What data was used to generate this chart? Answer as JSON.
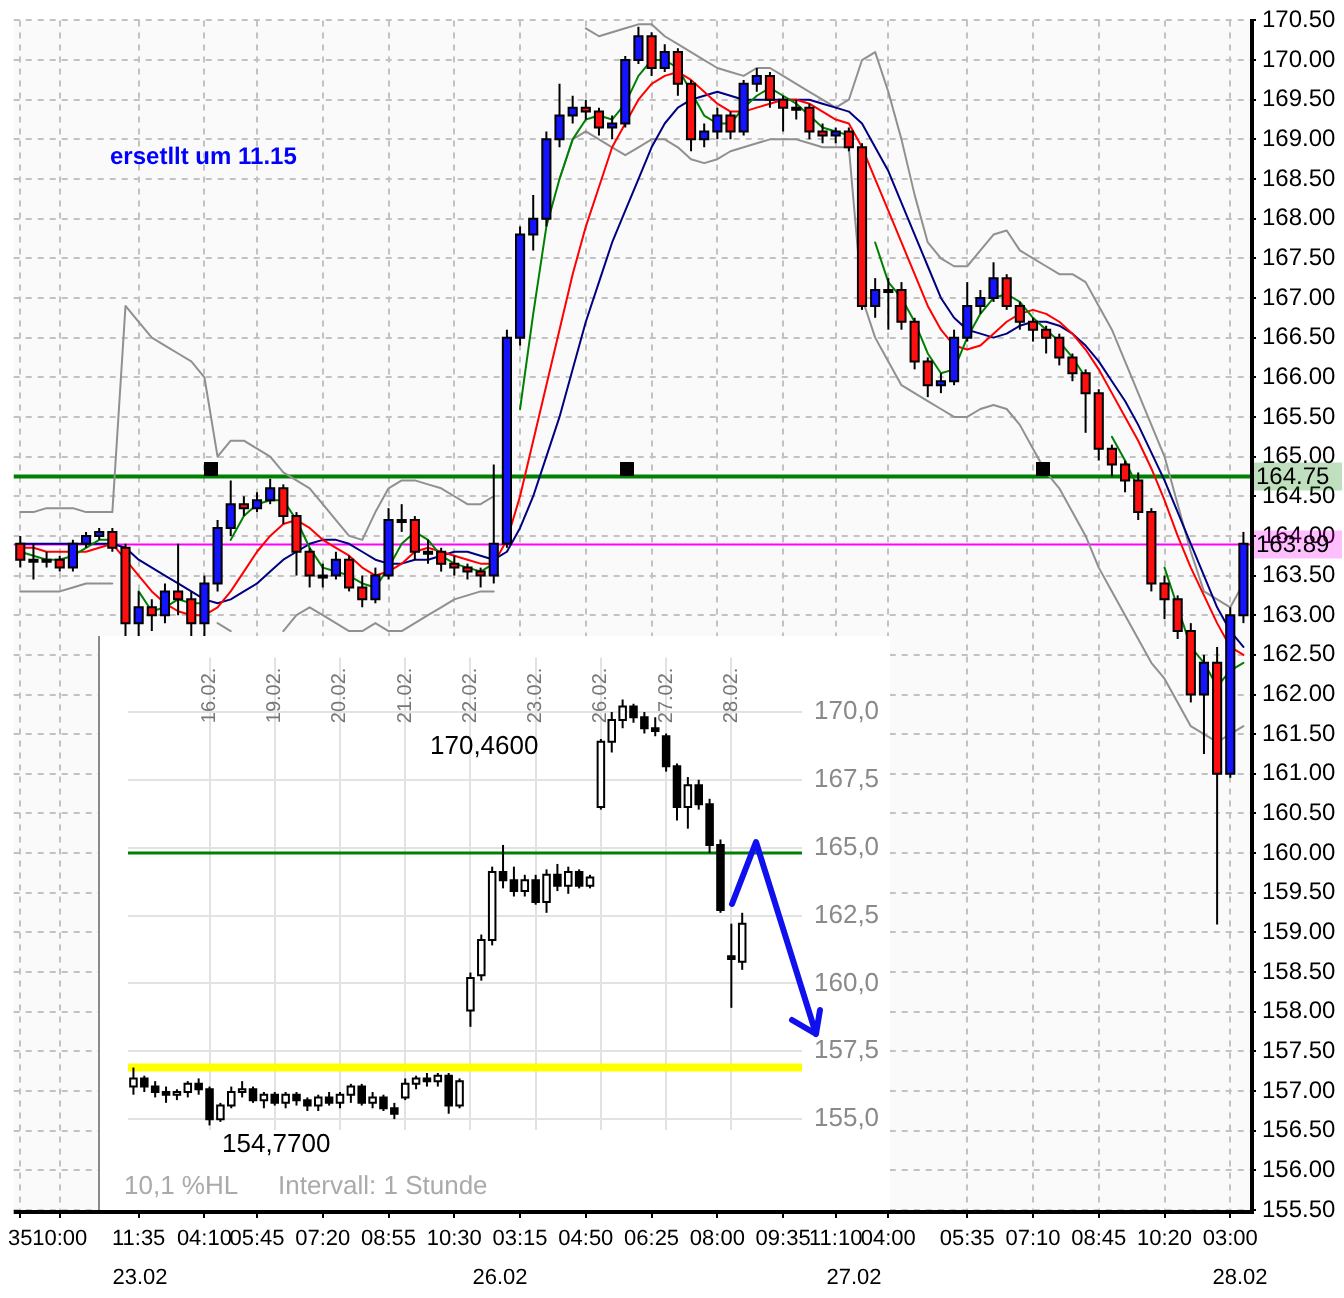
{
  "chart_data": [
    {
      "type": "candlestick",
      "categories": [
        "35",
        null,
        null,
        "10:00",
        null,
        null,
        null,
        null,
        null,
        "11:35",
        null,
        null,
        null,
        null,
        "04:10",
        null,
        null,
        null,
        "05:45",
        null,
        null,
        null,
        null,
        "07:20",
        null,
        null,
        null,
        null,
        "08:55",
        null,
        null,
        null,
        null,
        "10:30",
        null,
        null,
        null,
        null,
        "03:15",
        null,
        null,
        null,
        null,
        "04:50",
        null,
        null,
        null,
        null,
        "06:25",
        null,
        null,
        null,
        null,
        "08:00",
        null,
        null,
        null,
        null,
        "09:35",
        null,
        null,
        null,
        "11:10",
        null,
        null,
        null,
        "04:00",
        null,
        null,
        null,
        null,
        null,
        "05:35",
        null,
        null,
        null,
        null,
        "07:10",
        null,
        null,
        null,
        null,
        "08:45",
        null,
        null,
        null,
        null,
        "10:20",
        null,
        null,
        null,
        null,
        "03:00",
        null
      ],
      "ohlc": [
        [
          163.9,
          164.0,
          163.6,
          163.7
        ],
        [
          163.7,
          163.9,
          163.45,
          163.7
        ],
        [
          163.7,
          163.8,
          163.6,
          163.7
        ],
        [
          163.7,
          163.75,
          163.55,
          163.6
        ],
        [
          163.6,
          163.95,
          163.55,
          163.9
        ],
        [
          163.9,
          164.05,
          163.85,
          164.0
        ],
        [
          164.0,
          164.1,
          163.95,
          164.05
        ],
        [
          164.05,
          164.1,
          163.8,
          163.85
        ],
        [
          163.85,
          163.9,
          162.7,
          162.9
        ],
        [
          162.9,
          163.3,
          162.7,
          163.1
        ],
        [
          163.1,
          163.2,
          162.8,
          163.0
        ],
        [
          163.0,
          163.4,
          162.9,
          163.3
        ],
        [
          163.3,
          163.9,
          163.0,
          163.2
        ],
        [
          163.2,
          163.3,
          162.7,
          162.9
        ],
        [
          162.9,
          163.5,
          162.7,
          163.4
        ],
        [
          163.4,
          164.2,
          163.3,
          164.1
        ],
        [
          164.1,
          164.7,
          164.0,
          164.4
        ],
        [
          164.4,
          164.5,
          164.25,
          164.35
        ],
        [
          164.35,
          164.55,
          164.3,
          164.45
        ],
        [
          164.45,
          164.72,
          164.4,
          164.6
        ],
        [
          164.6,
          164.65,
          164.15,
          164.25
        ],
        [
          164.25,
          164.3,
          163.5,
          163.8
        ],
        [
          163.8,
          163.85,
          163.35,
          163.5
        ],
        [
          163.5,
          163.65,
          163.35,
          163.5
        ],
        [
          163.5,
          163.8,
          163.45,
          163.7
        ],
        [
          163.7,
          163.75,
          163.3,
          163.35
        ],
        [
          163.35,
          163.5,
          163.1,
          163.2
        ],
        [
          163.2,
          163.6,
          163.15,
          163.5
        ],
        [
          163.5,
          164.35,
          163.45,
          164.2
        ],
        [
          164.2,
          164.4,
          164.05,
          164.2
        ],
        [
          164.2,
          164.25,
          163.7,
          163.8
        ],
        [
          163.8,
          163.95,
          163.65,
          163.8
        ],
        [
          163.8,
          163.85,
          163.55,
          163.65
        ],
        [
          163.65,
          163.75,
          163.5,
          163.6
        ],
        [
          163.6,
          163.65,
          163.45,
          163.55
        ],
        [
          163.55,
          163.6,
          163.35,
          163.5
        ],
        [
          163.5,
          164.9,
          163.4,
          163.9
        ],
        [
          163.9,
          166.6,
          163.85,
          166.5
        ],
        [
          166.5,
          167.9,
          166.4,
          167.8
        ],
        [
          167.8,
          168.3,
          167.6,
          168.0
        ],
        [
          168.0,
          169.1,
          167.9,
          169.0
        ],
        [
          169.0,
          169.7,
          168.9,
          169.3
        ],
        [
          169.3,
          169.55,
          169.2,
          169.4
        ],
        [
          169.4,
          169.5,
          169.25,
          169.35
        ],
        [
          169.35,
          169.4,
          169.05,
          169.15
        ],
        [
          169.15,
          169.3,
          169.0,
          169.2
        ],
        [
          169.2,
          170.05,
          169.15,
          170.0
        ],
        [
          170.0,
          170.42,
          169.95,
          170.3
        ],
        [
          170.3,
          170.35,
          169.8,
          169.9
        ],
        [
          169.9,
          170.2,
          169.85,
          170.1
        ],
        [
          170.1,
          170.15,
          169.55,
          169.7
        ],
        [
          169.7,
          169.75,
          168.85,
          169.0
        ],
        [
          169.0,
          169.2,
          168.9,
          169.1
        ],
        [
          169.1,
          169.4,
          169.0,
          169.3
        ],
        [
          169.3,
          169.35,
          169.0,
          169.1
        ],
        [
          169.1,
          169.75,
          169.05,
          169.7
        ],
        [
          169.7,
          169.9,
          169.6,
          169.8
        ],
        [
          169.8,
          169.85,
          169.4,
          169.5
        ],
        [
          169.5,
          169.55,
          169.1,
          169.4
        ],
        [
          169.4,
          169.5,
          169.25,
          169.4
        ],
        [
          169.4,
          169.45,
          169.0,
          169.1
        ],
        [
          169.1,
          169.2,
          168.95,
          169.05
        ],
        [
          169.05,
          169.15,
          168.95,
          169.1
        ],
        [
          169.1,
          169.15,
          168.85,
          168.9
        ],
        [
          168.9,
          168.95,
          166.85,
          166.9
        ],
        [
          166.9,
          167.25,
          166.75,
          167.1
        ],
        [
          167.1,
          167.25,
          166.6,
          167.1
        ],
        [
          167.1,
          167.2,
          166.6,
          166.7
        ],
        [
          166.7,
          166.75,
          166.1,
          166.2
        ],
        [
          166.2,
          166.25,
          165.75,
          165.9
        ],
        [
          165.9,
          166.05,
          165.8,
          165.95
        ],
        [
          165.95,
          166.6,
          165.9,
          166.5
        ],
        [
          166.5,
          167.2,
          166.45,
          166.9
        ],
        [
          166.9,
          167.1,
          166.8,
          167.0
        ],
        [
          167.0,
          167.45,
          166.95,
          167.25
        ],
        [
          167.25,
          167.3,
          166.85,
          166.9
        ],
        [
          166.9,
          166.95,
          166.6,
          166.7
        ],
        [
          166.7,
          166.75,
          166.45,
          166.6
        ],
        [
          166.6,
          166.65,
          166.3,
          166.5
        ],
        [
          166.5,
          166.55,
          166.15,
          166.25
        ],
        [
          166.25,
          166.3,
          165.95,
          166.05
        ],
        [
          166.05,
          166.1,
          165.3,
          165.8
        ],
        [
          165.8,
          165.85,
          164.95,
          165.1
        ],
        [
          165.1,
          165.15,
          164.75,
          164.9
        ],
        [
          164.9,
          164.95,
          164.55,
          164.7
        ],
        [
          164.7,
          164.8,
          164.2,
          164.3
        ],
        [
          164.3,
          164.35,
          163.3,
          163.4
        ],
        [
          163.4,
          163.5,
          162.95,
          163.2
        ],
        [
          163.2,
          163.25,
          162.7,
          162.8
        ],
        [
          162.8,
          162.9,
          161.9,
          162.0
        ],
        [
          162.0,
          162.5,
          161.25,
          162.4
        ],
        [
          162.4,
          162.6,
          159.1,
          161.0
        ],
        [
          161.0,
          163.1,
          160.95,
          163.0
        ],
        [
          163.0,
          164.05,
          162.9,
          163.9
        ]
      ],
      "series": [
        {
          "type": "line",
          "color": "#008000",
          "values": [
            163.8,
            163.75,
            163.7,
            163.7,
            163.75,
            163.85,
            163.95,
            163.95,
            null,
            163.3,
            163.05,
            163.1,
            163.2,
            163.15,
            163.15,
            null,
            163.95,
            164.25,
            164.4,
            164.45,
            164.45,
            164.2,
            163.85,
            163.6,
            163.55,
            163.5,
            163.4,
            163.35,
            163.6,
            163.9,
            164.05,
            163.95,
            163.75,
            163.65,
            163.6,
            163.55,
            163.65,
            null,
            165.6,
            166.8,
            167.9,
            168.5,
            169.0,
            169.25,
            169.3,
            169.25,
            169.45,
            169.8,
            170.0,
            170.0,
            169.9,
            169.6,
            169.3,
            169.2,
            169.2,
            169.4,
            169.55,
            169.65,
            169.55,
            169.45,
            169.3,
            169.15,
            169.1,
            169.05,
            null,
            167.7,
            167.2,
            167.0,
            166.7,
            166.3,
            166.05,
            166.1,
            166.5,
            166.8,
            167.0,
            167.05,
            166.95,
            166.75,
            166.6,
            166.45,
            166.25,
            166.0,
            null,
            165.25,
            164.95,
            164.6,
            null,
            163.6,
            163.1,
            162.6,
            162.4,
            162.1,
            162.3,
            162.4
          ]
        },
        {
          "type": "line",
          "color": "#ff0000",
          "values": [
            163.85,
            163.85,
            163.8,
            163.8,
            163.8,
            163.8,
            163.85,
            163.9,
            163.7,
            163.5,
            163.3,
            163.15,
            163.05,
            163.0,
            163.0,
            163.1,
            163.3,
            163.55,
            163.8,
            164.0,
            164.15,
            164.2,
            164.1,
            163.95,
            163.85,
            163.75,
            163.6,
            163.5,
            163.55,
            163.65,
            163.8,
            163.85,
            163.8,
            163.75,
            163.7,
            163.65,
            163.65,
            163.95,
            164.5,
            165.2,
            165.9,
            166.6,
            167.3,
            167.9,
            168.4,
            168.9,
            169.2,
            169.5,
            169.7,
            169.8,
            169.85,
            169.75,
            169.6,
            169.45,
            169.35,
            169.35,
            169.4,
            169.45,
            169.5,
            169.5,
            169.45,
            169.35,
            169.25,
            169.2,
            168.9,
            168.5,
            168.1,
            167.7,
            167.3,
            166.9,
            166.6,
            166.4,
            166.35,
            166.4,
            166.55,
            166.7,
            166.8,
            166.85,
            166.8,
            166.7,
            166.55,
            166.35,
            166.1,
            165.8,
            165.5,
            165.2,
            164.85,
            164.45,
            164.0,
            163.6,
            163.25,
            162.9,
            162.6,
            162.5
          ]
        },
        {
          "type": "line",
          "color": "#000080",
          "values": [
            163.9,
            163.9,
            163.9,
            163.9,
            163.9,
            163.9,
            163.9,
            163.9,
            163.85,
            163.7,
            163.6,
            163.5,
            163.4,
            163.3,
            163.2,
            163.15,
            163.2,
            163.3,
            163.4,
            163.55,
            163.7,
            163.8,
            163.9,
            163.95,
            163.95,
            163.9,
            163.8,
            163.7,
            163.65,
            163.65,
            163.7,
            163.7,
            163.75,
            163.8,
            163.8,
            163.75,
            163.7,
            163.8,
            164.1,
            164.5,
            165.0,
            165.5,
            166.1,
            166.7,
            167.2,
            167.7,
            168.1,
            168.5,
            168.9,
            169.2,
            169.4,
            169.5,
            169.55,
            169.6,
            169.55,
            169.5,
            169.5,
            169.5,
            169.5,
            169.5,
            169.5,
            169.45,
            169.4,
            169.35,
            169.2,
            168.9,
            168.6,
            168.2,
            167.8,
            167.4,
            167.0,
            166.75,
            166.6,
            166.55,
            166.5,
            166.55,
            166.65,
            166.7,
            166.7,
            166.65,
            166.55,
            166.4,
            166.2,
            165.95,
            165.7,
            165.4,
            165.05,
            164.7,
            164.3,
            163.9,
            163.5,
            163.1,
            162.8,
            162.6
          ]
        },
        {
          "type": "line",
          "color": "#909090",
          "values": [
            164.3,
            164.3,
            164.35,
            164.35,
            164.35,
            164.3,
            164.3,
            164.3,
            166.9,
            166.7,
            166.5,
            166.4,
            166.3,
            166.2,
            166.0,
            165.0,
            165.2,
            165.2,
            165.1,
            165.0,
            164.8,
            164.7,
            164.6,
            164.4,
            164.2,
            164.0,
            163.95,
            164.3,
            164.6,
            164.7,
            164.7,
            164.65,
            164.6,
            164.5,
            164.4,
            164.4,
            164.5,
            null,
            null,
            null,
            null,
            null,
            null,
            170.4,
            170.3,
            170.35,
            170.4,
            170.45,
            170.45,
            170.3,
            170.2,
            170.1,
            170.0,
            169.9,
            169.85,
            169.8,
            169.9,
            169.9,
            169.8,
            169.7,
            169.6,
            169.5,
            169.4,
            169.5,
            170.0,
            170.1,
            169.6,
            169.0,
            168.3,
            167.7,
            167.5,
            167.4,
            167.4,
            167.6,
            167.8,
            167.85,
            167.6,
            167.5,
            167.4,
            167.3,
            167.3,
            167.2,
            166.9,
            166.6,
            166.2,
            165.8,
            165.4,
            165.0,
            164.4,
            163.8,
            163.3,
            163.2,
            163.1,
            163.4
          ]
        },
        {
          "type": "line",
          "color": "#909090",
          "values": [
            163.3,
            163.3,
            163.3,
            163.3,
            163.35,
            163.4,
            163.4,
            163.4,
            null,
            null,
            null,
            null,
            null,
            null,
            null,
            162.9,
            162.8,
            null,
            null,
            null,
            162.8,
            163.0,
            163.1,
            163.0,
            162.9,
            162.8,
            162.8,
            162.9,
            162.8,
            162.8,
            162.9,
            163.0,
            163.1,
            163.2,
            163.25,
            163.3,
            163.3,
            null,
            null,
            null,
            null,
            168.5,
            169.0,
            169.1,
            169.0,
            168.9,
            168.8,
            168.9,
            169.0,
            169.0,
            168.9,
            168.75,
            168.7,
            168.75,
            168.85,
            168.9,
            168.95,
            169.0,
            169.0,
            169.0,
            168.95,
            168.9,
            168.9,
            168.9,
            167.0,
            166.5,
            166.2,
            165.9,
            165.8,
            165.7,
            165.6,
            165.5,
            165.5,
            165.6,
            165.65,
            165.6,
            165.4,
            165.1,
            164.8,
            164.6,
            164.3,
            164.0,
            163.6,
            163.3,
            163.0,
            162.7,
            162.4,
            162.2,
            161.9,
            161.6,
            161.5,
            161.4,
            161.5,
            161.6
          ]
        }
      ],
      "ylim": [
        155.5,
        170.5
      ],
      "yticks": [
        {
          "value": 155.5,
          "label": "155.50"
        },
        {
          "value": 156,
          "label": "156.00"
        },
        {
          "value": 156.5,
          "label": "156.50"
        },
        {
          "value": 157,
          "label": "157.00"
        },
        {
          "value": 157.5,
          "label": "157.50"
        },
        {
          "value": 158,
          "label": "158.00"
        },
        {
          "value": 158.5,
          "label": "158.50"
        },
        {
          "value": 159,
          "label": "159.00"
        },
        {
          "value": 159.5,
          "label": "159.50"
        },
        {
          "value": 160,
          "label": "160.00"
        },
        {
          "value": 160.5,
          "label": "160.50"
        },
        {
          "value": 161,
          "label": "161.00"
        },
        {
          "value": 161.5,
          "label": "161.50"
        },
        {
          "value": 162,
          "label": "162.00"
        },
        {
          "value": 162.5,
          "label": "162.50"
        },
        {
          "value": 163,
          "label": "163.00"
        },
        {
          "value": 163.5,
          "label": "163.50"
        },
        {
          "value": 164,
          "label": "164.00"
        },
        {
          "value": 164.5,
          "label": "164.50"
        },
        {
          "value": 165,
          "label": "165.00"
        },
        {
          "value": 165.5,
          "label": "165.50"
        },
        {
          "value": 166,
          "label": "166.00"
        },
        {
          "value": 166.5,
          "label": "166.50"
        },
        {
          "value": 167,
          "label": "167.00"
        },
        {
          "value": 167.5,
          "label": "167.50"
        },
        {
          "value": 168,
          "label": "168.00"
        },
        {
          "value": 168.5,
          "label": "168.50"
        },
        {
          "value": 169,
          "label": "169.00"
        },
        {
          "value": 169.5,
          "label": "169.50"
        },
        {
          "value": 170,
          "label": "170.00"
        },
        {
          "value": 170.5,
          "label": "170.50"
        }
      ],
      "ref_lines": [
        {
          "axis": "y",
          "value": 164.75,
          "label": "164.75",
          "color": "#008000"
        },
        {
          "axis": "y",
          "value": 163.89,
          "label": "163.89",
          "color": "#ff00ff"
        }
      ],
      "grid": true,
      "line_style": "solid",
      "annotations": [
        "ersetllt um 11.15",
        "23.02",
        "26.02",
        "27.02",
        "28.02"
      ]
    },
    {
      "type": "candlestick",
      "categories": [
        null,
        null,
        null,
        null,
        null,
        null,
        null,
        "16.02.",
        null,
        null,
        null,
        null,
        null,
        "19.02.",
        null,
        null,
        null,
        null,
        null,
        "20.02.",
        null,
        null,
        null,
        null,
        null,
        "21.02.",
        null,
        null,
        null,
        null,
        null,
        "22.02.",
        null,
        null,
        null,
        null,
        null,
        "23.02.",
        null,
        null,
        null,
        null,
        null,
        "26.02.",
        null,
        null,
        null,
        null,
        null,
        "27.02.",
        null,
        null,
        null,
        null,
        null,
        "28.02.",
        null,
        null,
        null,
        null,
        null,
        null
      ],
      "ohlc": [
        [
          156.2,
          156.9,
          155.9,
          156.5
        ],
        [
          156.5,
          156.6,
          156.0,
          156.2
        ],
        [
          156.2,
          156.4,
          155.8,
          156.0
        ],
        [
          156.0,
          156.2,
          155.6,
          155.9
        ],
        [
          155.9,
          156.1,
          155.7,
          156.0
        ],
        [
          156.0,
          156.4,
          155.8,
          156.3
        ],
        [
          156.3,
          156.5,
          155.9,
          156.1
        ],
        [
          156.1,
          156.2,
          154.77,
          155.0
        ],
        [
          155.0,
          155.6,
          154.9,
          155.5
        ],
        [
          155.5,
          156.2,
          155.4,
          156.0
        ],
        [
          156.0,
          156.4,
          155.8,
          156.1
        ],
        [
          156.1,
          156.2,
          155.6,
          155.7
        ],
        [
          155.7,
          156.0,
          155.4,
          155.9
        ],
        [
          155.9,
          156.0,
          155.5,
          155.6
        ],
        [
          155.6,
          156.0,
          155.4,
          155.9
        ],
        [
          155.9,
          156.0,
          155.5,
          155.7
        ],
        [
          155.7,
          155.8,
          155.3,
          155.5
        ],
        [
          155.5,
          155.9,
          155.3,
          155.8
        ],
        [
          155.8,
          156.0,
          155.5,
          155.6
        ],
        [
          155.6,
          156.0,
          155.4,
          155.9
        ],
        [
          155.9,
          156.3,
          155.6,
          156.2
        ],
        [
          156.2,
          156.3,
          155.5,
          155.6
        ],
        [
          155.6,
          156.0,
          155.4,
          155.8
        ],
        [
          155.8,
          155.9,
          155.3,
          155.4
        ],
        [
          155.4,
          155.6,
          155.0,
          155.2
        ],
        [
          155.8,
          156.5,
          155.7,
          156.3
        ],
        [
          156.3,
          156.6,
          156.1,
          156.5
        ],
        [
          156.5,
          156.7,
          156.2,
          156.4
        ],
        [
          156.4,
          156.7,
          156.2,
          156.6
        ],
        [
          156.6,
          156.7,
          155.2,
          155.5
        ],
        [
          155.5,
          156.5,
          155.4,
          156.4
        ],
        [
          159.0,
          160.4,
          158.4,
          160.2
        ],
        [
          160.3,
          161.8,
          160.1,
          161.6
        ],
        [
          161.6,
          164.3,
          161.4,
          164.1
        ],
        [
          164.1,
          165.1,
          163.5,
          163.8
        ],
        [
          163.8,
          164.3,
          163.2,
          163.4
        ],
        [
          163.4,
          164.0,
          163.2,
          163.8
        ],
        [
          163.8,
          164.0,
          162.9,
          163.0
        ],
        [
          163.0,
          164.2,
          162.6,
          164.0
        ],
        [
          164.0,
          164.4,
          163.4,
          163.6
        ],
        [
          163.6,
          164.3,
          163.3,
          164.1
        ],
        [
          164.1,
          164.2,
          163.5,
          163.6
        ],
        [
          163.6,
          164.0,
          163.5,
          163.9
        ],
        [
          166.5,
          169.0,
          166.4,
          168.9
        ],
        [
          168.9,
          170.0,
          168.5,
          169.7
        ],
        [
          169.7,
          170.46,
          169.4,
          170.2
        ],
        [
          170.2,
          170.3,
          169.6,
          169.8
        ],
        [
          169.8,
          170.0,
          169.2,
          169.4
        ],
        [
          169.4,
          169.8,
          169.1,
          169.3
        ],
        [
          169.1,
          169.2,
          167.8,
          168.0
        ],
        [
          168.0,
          168.1,
          166.0,
          166.5
        ],
        [
          166.5,
          167.6,
          165.7,
          167.3
        ],
        [
          167.3,
          167.5,
          166.4,
          166.6
        ],
        [
          166.6,
          166.8,
          164.8,
          165.1
        ],
        [
          165.1,
          165.3,
          162.6,
          162.7
        ],
        [
          161.0,
          162.2,
          159.1,
          160.9
        ],
        [
          160.8,
          162.6,
          160.5,
          162.2
        ],
        null,
        null,
        null,
        null,
        null
      ],
      "ylim": [
        154.6,
        172.0
      ],
      "yticks": [
        {
          "value": 155,
          "label": "155,0"
        },
        {
          "value": 157.5,
          "label": "157,5"
        },
        {
          "value": 160,
          "label": "160,0"
        },
        {
          "value": 162.5,
          "label": "162,5"
        },
        {
          "value": 165,
          "label": "165,0"
        },
        {
          "value": 167.5,
          "label": "167,5"
        },
        {
          "value": 170,
          "label": "170,0"
        }
      ],
      "ref_lines": [
        {
          "axis": "y",
          "value": 164.8,
          "color": "#008000"
        },
        {
          "axis": "y",
          "value": 156.9,
          "color": "#ffff00"
        }
      ],
      "grid": true,
      "annotations": [
        "170,4600",
        "154,7700",
        "10,1 %HL",
        "Intervall: 1 Stunde"
      ]
    }
  ]
}
